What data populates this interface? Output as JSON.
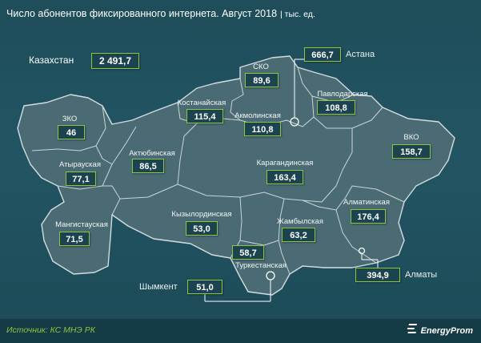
{
  "title": "Число абонентов фиксированного интернета. Август 2018",
  "unit": "| тыс. ед.",
  "total": {
    "label": "Казахстан",
    "value": "2 491,7"
  },
  "regions": [
    {
      "id": "sko",
      "name": "СКО",
      "value": "89,6"
    },
    {
      "id": "pavlodar",
      "name": "Павлодарская",
      "value": "108,8"
    },
    {
      "id": "kostanay",
      "name": "Костанайская",
      "value": "115,4"
    },
    {
      "id": "akmola",
      "name": "Акмолинская",
      "value": "110,8"
    },
    {
      "id": "zko",
      "name": "ЗКО",
      "value": "46"
    },
    {
      "id": "vko",
      "name": "ВКО",
      "value": "158,7"
    },
    {
      "id": "aktobe",
      "name": "Актюбинская",
      "value": "86,5"
    },
    {
      "id": "atyrau",
      "name": "Атырауская",
      "value": "77,1"
    },
    {
      "id": "karaganda",
      "name": "Карагандинская",
      "value": "163,4"
    },
    {
      "id": "almaty-reg",
      "name": "Алматинская",
      "value": "176,4"
    },
    {
      "id": "kyzylorda",
      "name": "Кызылординская",
      "value": "53,0"
    },
    {
      "id": "zhambyl",
      "name": "Жамбылская",
      "value": "63,2"
    },
    {
      "id": "mangystau",
      "name": "Мангистауская",
      "value": "71,5"
    },
    {
      "id": "turkestan",
      "name": "Туркестанская",
      "value": "58,7"
    }
  ],
  "cities": [
    {
      "id": "astana",
      "name": "Астана",
      "value": "666,7"
    },
    {
      "id": "almaty",
      "name": "Алматы",
      "value": "394,9"
    },
    {
      "id": "shymkent",
      "name": "Шымкент",
      "value": "51,0"
    }
  ],
  "source": "Источник: КС МНЭ РК",
  "brand": "EnergyProm",
  "colors": {
    "background": "#225563",
    "map_fill": "#4b6b74",
    "borders": "#c9d5d7",
    "value_border": "#8fc63f",
    "source_text": "#8fc63f"
  }
}
